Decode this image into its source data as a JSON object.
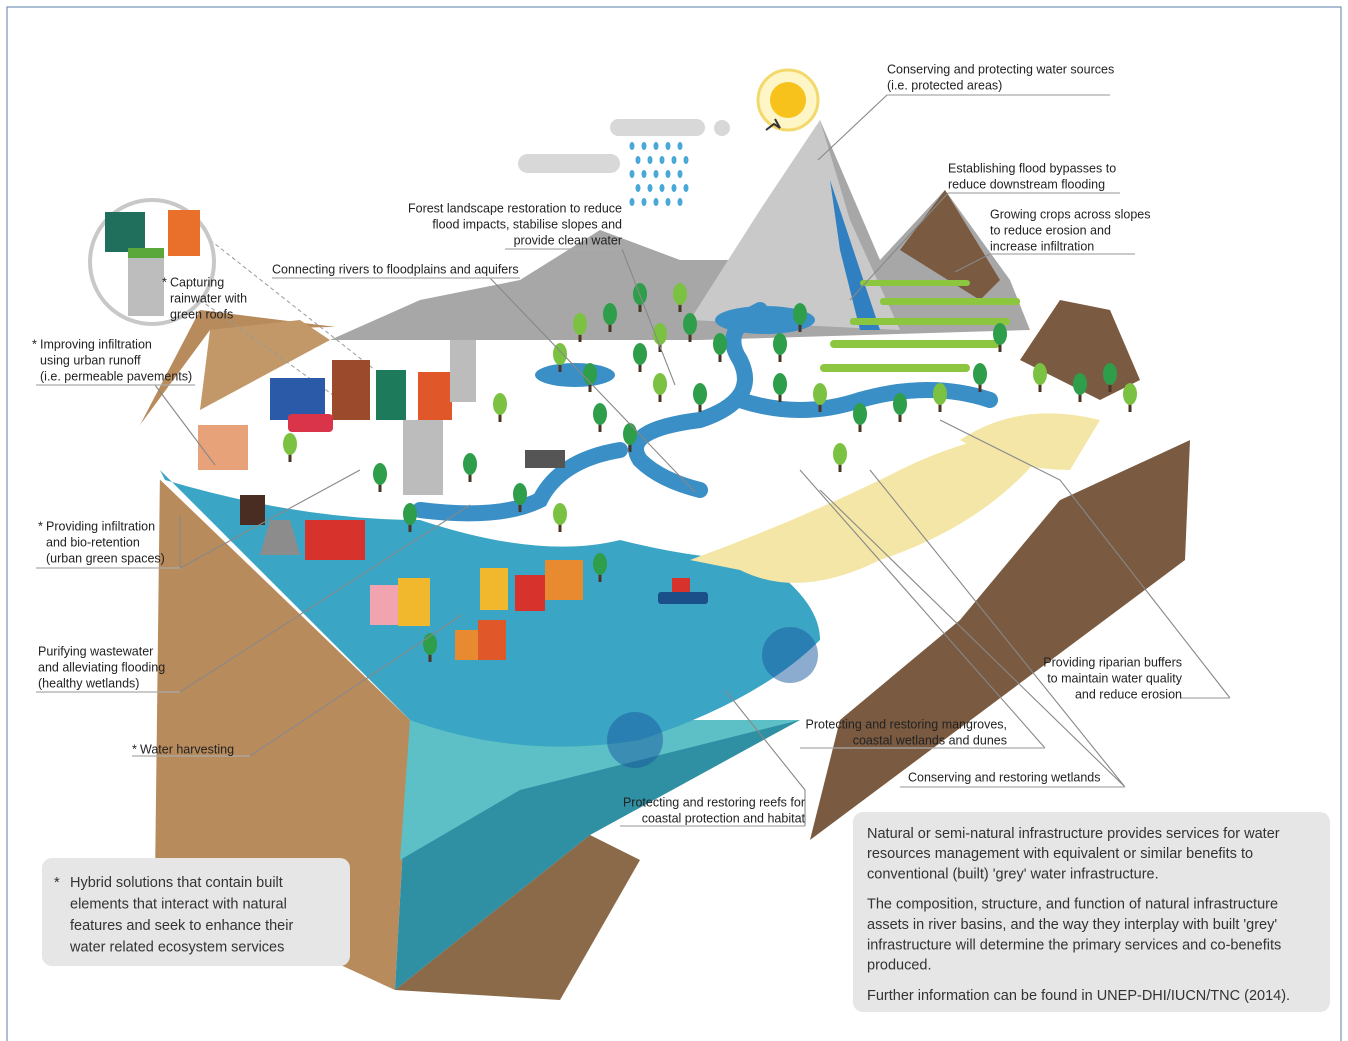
{
  "labels": [
    {
      "lines": [
        "Conserving and protecting water sources",
        "(i.e. protected areas)"
      ]
    },
    {
      "lines": [
        "Establishing flood bypasses to",
        "reduce downstream flooding"
      ]
    },
    {
      "lines": [
        "Growing crops across slopes",
        "to reduce erosion and",
        "increase infiltration"
      ]
    },
    {
      "lines": [
        "Forest landscape restoration to reduce",
        "flood impacts, stabilise slopes and",
        "provide clean water"
      ]
    },
    {
      "lines": [
        "Connecting rivers to floodplains and aquifers"
      ]
    },
    {
      "marker": "*",
      "lines": [
        "Capturing",
        "rainwater with",
        "green roofs"
      ]
    },
    {
      "marker": "*",
      "lines": [
        "Improving infiltration",
        "using urban runoff",
        "(i.e. permeable pavements)"
      ]
    },
    {
      "marker": "*",
      "lines": [
        "Providing infiltration",
        "and bio-retention",
        "(urban green spaces)"
      ]
    },
    {
      "lines": [
        "Purifying wastewater",
        "and alleviating flooding",
        "(healthy wetlands)"
      ]
    },
    {
      "marker": "*",
      "lines": [
        "Water harvesting"
      ]
    },
    {
      "lines": [
        "Protecting and restoring reefs for",
        "coastal protection and habitat"
      ]
    },
    {
      "lines": [
        "Protecting and restoring mangroves,",
        "coastal wetlands and dunes"
      ]
    },
    {
      "lines": [
        "Conserving and restoring wetlands"
      ]
    },
    {
      "lines": [
        "Providing riparian buffers",
        "to maintain water quality",
        "and reduce erosion"
      ]
    }
  ],
  "note": {
    "marker": "*",
    "lines": [
      "Hybrid solutions that contain built",
      "elements that interact with natural",
      "features and seek to enhance their",
      "water related ecosystem services"
    ]
  },
  "info": {
    "paragraphs": [
      [
        "Natural or semi-natural infrastructure provides services for water",
        "resources management with equivalent or similar benefits to",
        "conventional (built) 'grey' water infrastructure."
      ],
      [
        "The composition, structure, and function of natural infrastructure",
        "assets in river basins, and the way they interplay with built 'grey'",
        "infrastructure will determine the primary services and co-benefits",
        "produced."
      ],
      [
        "Further information can be found in UNEP-DHI/IUCN/TNC (2014)."
      ]
    ]
  }
}
